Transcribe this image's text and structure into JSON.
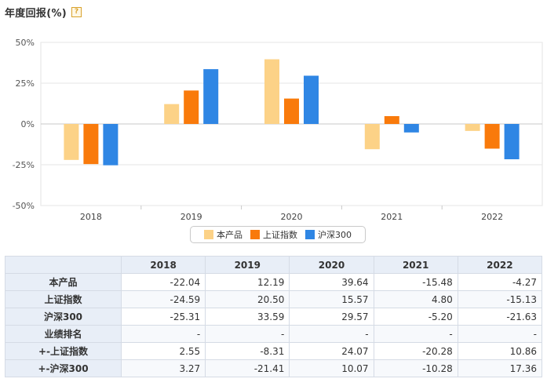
{
  "header": {
    "title": "年度回报(%)",
    "help_icon": "?"
  },
  "chart_data": {
    "type": "bar",
    "categories": [
      "2018",
      "2019",
      "2020",
      "2021",
      "2022"
    ],
    "series": [
      {
        "name": "本产品",
        "color": "#fcd287",
        "values": [
          -22.04,
          12.19,
          39.64,
          -15.48,
          -4.27
        ]
      },
      {
        "name": "上证指数",
        "color": "#f97a0b",
        "values": [
          -24.59,
          20.5,
          15.57,
          4.8,
          -15.13
        ]
      },
      {
        "name": "沪深300",
        "color": "#2f86e4",
        "values": [
          -25.31,
          33.59,
          29.57,
          -5.2,
          -21.63
        ]
      }
    ],
    "ylim": [
      -50,
      50
    ],
    "yticks": [
      50,
      25,
      0,
      -25,
      -50
    ],
    "ytick_labels": [
      "50%",
      "25%",
      "0%",
      "-25%",
      "-50%"
    ],
    "grid": true,
    "legend_position": "bottom-center"
  },
  "table": {
    "columns": [
      "",
      "2018",
      "2019",
      "2020",
      "2021",
      "2022"
    ],
    "rows": [
      {
        "label": "本产品",
        "values": [
          "-22.04",
          "12.19",
          "39.64",
          "-15.48",
          "-4.27"
        ]
      },
      {
        "label": "上证指数",
        "values": [
          "-24.59",
          "20.50",
          "15.57",
          "4.80",
          "-15.13"
        ]
      },
      {
        "label": "沪深300",
        "values": [
          "-25.31",
          "33.59",
          "29.57",
          "-5.20",
          "-21.63"
        ]
      },
      {
        "label": "业绩排名",
        "values": [
          "-",
          "-",
          "-",
          "-",
          "-"
        ]
      },
      {
        "label": "+-上证指数",
        "values": [
          "2.55",
          "-8.31",
          "24.07",
          "-20.28",
          "10.86"
        ]
      },
      {
        "label": "+-沪深300",
        "values": [
          "3.27",
          "-21.41",
          "10.07",
          "-10.28",
          "17.36"
        ]
      }
    ]
  }
}
